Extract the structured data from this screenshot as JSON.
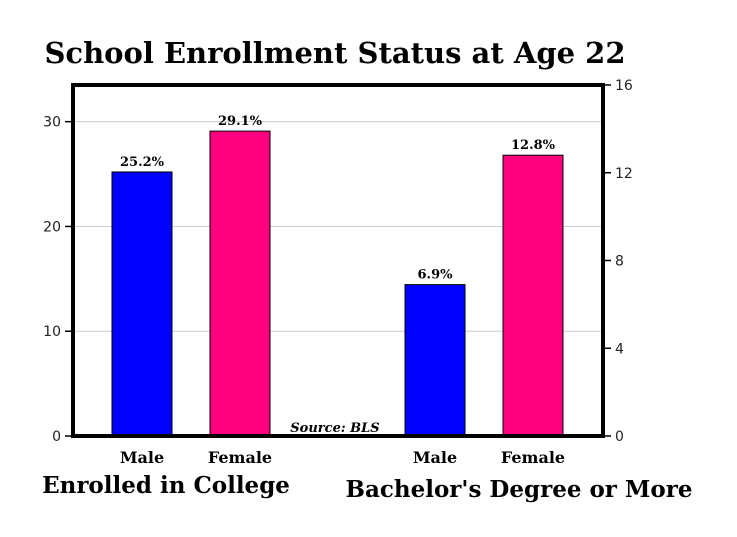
{
  "chart_data": {
    "type": "bar",
    "title": "School Enrollment Status at Age 22",
    "source": "Source: BLS",
    "grid": true,
    "left_axis": {
      "ylim": [
        0,
        33.5
      ],
      "ticks": [
        "0",
        "10",
        "20",
        "30"
      ]
    },
    "right_axis": {
      "ylim": [
        0,
        16
      ],
      "ticks": [
        "0",
        "4",
        "8",
        "12",
        "16"
      ]
    },
    "groups": [
      {
        "label": "Enrolled in College",
        "axis": "left",
        "bars": [
          {
            "category": "Male",
            "value": 25.2,
            "value_label": "25.2%",
            "color": "#0000ff"
          },
          {
            "category": "Female",
            "value": 29.1,
            "value_label": "29.1%",
            "color": "#ff007f"
          }
        ]
      },
      {
        "label": "Bachelor's Degree or More",
        "axis": "right",
        "bars": [
          {
            "category": "Male",
            "value": 6.9,
            "value_label": "6.9%",
            "color": "#0000ff"
          },
          {
            "category": "Female",
            "value": 12.8,
            "value_label": "12.8%",
            "color": "#ff007f"
          }
        ]
      }
    ]
  }
}
